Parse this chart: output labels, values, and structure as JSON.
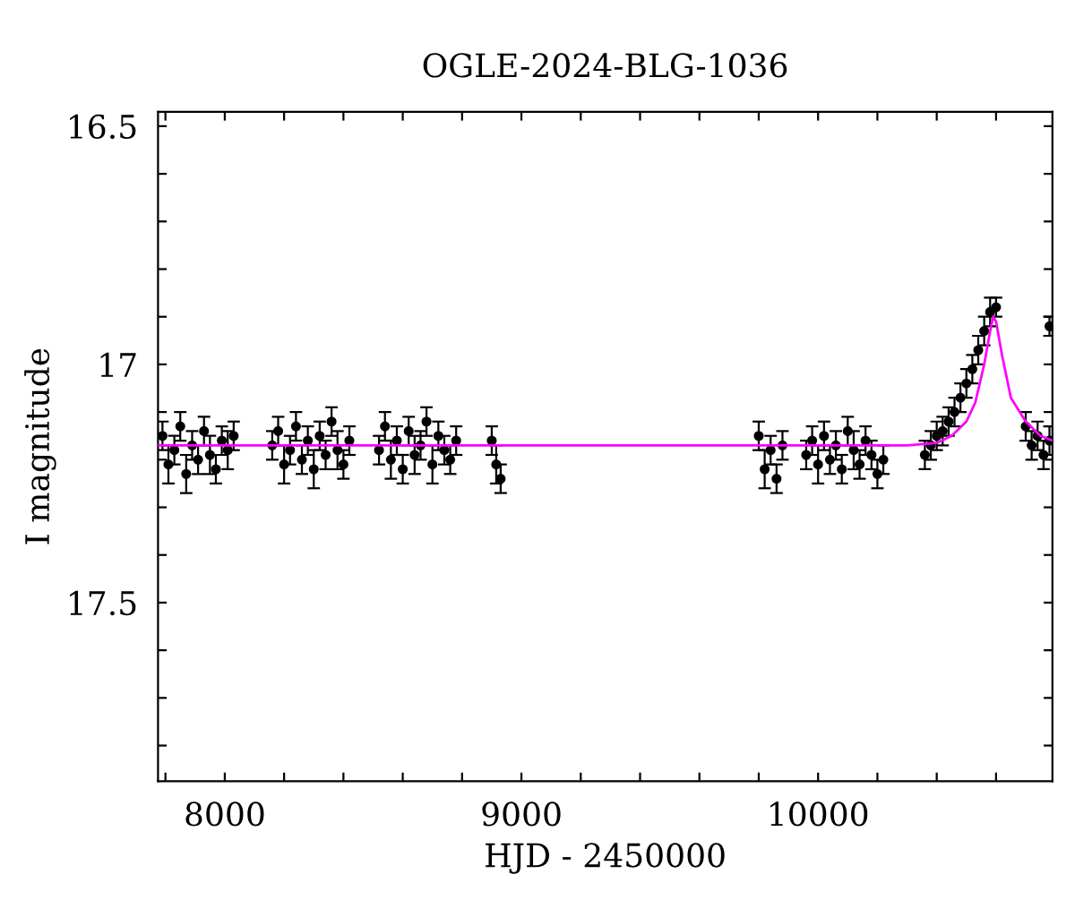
{
  "chart_data": {
    "type": "scatter",
    "title": "OGLE-2024-BLG-1036",
    "xlabel": "HJD - 2450000",
    "ylabel": "I magnitude",
    "xlim": [
      7775,
      10790
    ],
    "ylim": [
      17.875,
      16.47
    ],
    "xticks": [
      {
        "value": 7800,
        "label": null
      },
      8000,
      {
        "value": 8200,
        "label": null
      },
      {
        "value": 8400,
        "label": null
      },
      {
        "value": 8600,
        "label": null
      },
      {
        "value": 8800,
        "label": null
      },
      9000,
      {
        "value": 9200,
        "label": null
      },
      {
        "value": 9400,
        "label": null
      },
      {
        "value": 9600,
        "label": null
      },
      {
        "value": 9800,
        "label": null
      },
      10000,
      {
        "value": 10200,
        "label": null
      },
      {
        "value": 10400,
        "label": null
      },
      {
        "value": 10600,
        "label": null
      }
    ],
    "yticks": [
      16.5,
      {
        "value": 16.6,
        "label": null
      },
      {
        "value": 16.7,
        "label": null
      },
      {
        "value": 16.8,
        "label": null
      },
      {
        "value": 16.9,
        "label": null
      },
      17,
      {
        "value": 17.1,
        "label": null
      },
      {
        "value": 17.2,
        "label": null
      },
      {
        "value": 17.3,
        "label": null
      },
      {
        "value": 17.4,
        "label": null
      },
      17.5,
      {
        "value": 17.6,
        "label": null
      },
      {
        "value": 17.7,
        "label": null
      },
      {
        "value": 17.8,
        "label": null
      }
    ],
    "grid": false,
    "legend": false,
    "marker": "circle",
    "series": [
      {
        "color": "#000000",
        "x": [
          7790,
          7810,
          7830,
          7850,
          7870,
          7890,
          7910,
          7930,
          7950,
          7970,
          7990,
          8010,
          8030,
          8160,
          8180,
          8200,
          8220,
          8240,
          8260,
          8280,
          8300,
          8320,
          8340,
          8360,
          8380,
          8400,
          8420,
          8520,
          8540,
          8560,
          8580,
          8600,
          8620,
          8640,
          8660,
          8680,
          8700,
          8720,
          8740,
          8760,
          8780,
          8900,
          8915,
          8930,
          9800,
          9820,
          9840,
          9860,
          9880,
          9960,
          9980,
          10000,
          10020,
          10040,
          10060,
          10080,
          10100,
          10120,
          10140,
          10160,
          10180,
          10200,
          10220,
          10360,
          10380,
          10400,
          10420,
          10440,
          10460,
          10480,
          10500,
          10520,
          10540,
          10560,
          10580,
          10600,
          10700,
          10720,
          10740,
          10760,
          10780,
          10780
        ],
        "values": [
          17.15,
          17.21,
          17.18,
          17.13,
          17.23,
          17.17,
          17.2,
          17.14,
          17.19,
          17.22,
          17.16,
          17.18,
          17.15,
          17.17,
          17.14,
          17.21,
          17.18,
          17.13,
          17.2,
          17.16,
          17.22,
          17.15,
          17.19,
          17.12,
          17.18,
          17.21,
          17.16,
          17.18,
          17.13,
          17.2,
          17.16,
          17.22,
          17.14,
          17.19,
          17.17,
          17.12,
          17.21,
          17.15,
          17.18,
          17.2,
          17.16,
          17.16,
          17.21,
          17.24,
          17.15,
          17.22,
          17.18,
          17.24,
          17.17,
          17.19,
          17.16,
          17.21,
          17.15,
          17.2,
          17.17,
          17.22,
          17.14,
          17.18,
          17.21,
          17.16,
          17.19,
          17.23,
          17.2,
          17.19,
          17.17,
          17.15,
          17.14,
          17.12,
          17.1,
          17.07,
          17.04,
          17.01,
          16.97,
          16.93,
          16.89,
          16.88,
          17.13,
          17.17,
          17.15,
          17.19,
          17.16,
          16.92
        ],
        "errors": [
          0.03,
          0.04,
          0.03,
          0.03,
          0.04,
          0.03,
          0.03,
          0.03,
          0.04,
          0.03,
          0.03,
          0.04,
          0.03,
          0.03,
          0.03,
          0.04,
          0.03,
          0.03,
          0.03,
          0.03,
          0.04,
          0.03,
          0.03,
          0.03,
          0.04,
          0.03,
          0.03,
          0.03,
          0.03,
          0.04,
          0.03,
          0.03,
          0.03,
          0.04,
          0.03,
          0.03,
          0.04,
          0.03,
          0.03,
          0.03,
          0.03,
          0.03,
          0.04,
          0.03,
          0.03,
          0.04,
          0.03,
          0.03,
          0.03,
          0.03,
          0.03,
          0.04,
          0.03,
          0.03,
          0.03,
          0.03,
          0.03,
          0.04,
          0.03,
          0.03,
          0.03,
          0.03,
          0.03,
          0.03,
          0.03,
          0.03,
          0.03,
          0.03,
          0.03,
          0.03,
          0.03,
          0.03,
          0.03,
          0.03,
          0.03,
          0.02,
          0.03,
          0.03,
          0.03,
          0.03,
          0.03,
          0.02
        ]
      },
      {
        "type": "line",
        "color": "#ff00ff",
        "marker": "none",
        "x": [
          7775,
          10300,
          10400,
          10450,
          10500,
          10530,
          10560,
          10580,
          10590,
          10600,
          10620,
          10650,
          10700,
          10750,
          10790
        ],
        "values": [
          17.17,
          17.17,
          17.165,
          17.15,
          17.12,
          17.08,
          17.0,
          16.93,
          16.9,
          16.91,
          16.98,
          17.07,
          17.12,
          17.15,
          17.16
        ]
      }
    ]
  }
}
